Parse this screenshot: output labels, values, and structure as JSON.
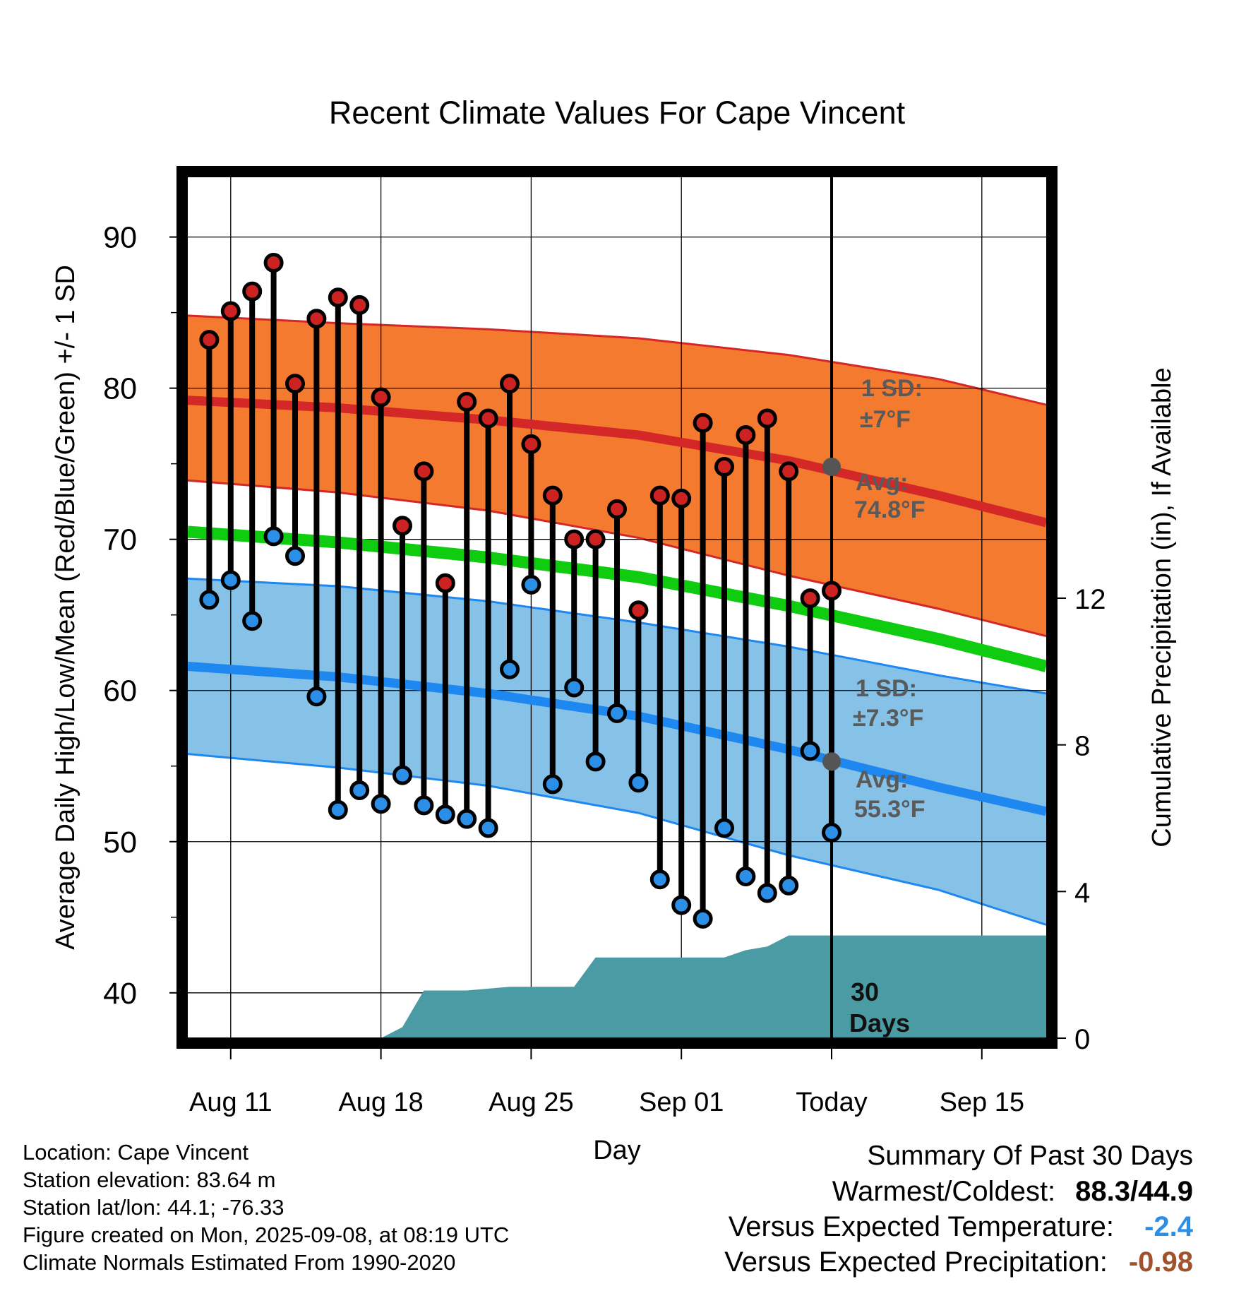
{
  "chart_data": {
    "type": "line",
    "title": "Recent Climate Values For Cape Vincent",
    "xlabel": "Day",
    "ylabel": "Average Daily High/Low/Mean (Red/Blue/Green) +/- 1 SD",
    "y2label": "Cumulative Precipitation (in), If Available",
    "ylim": [
      37,
      94
    ],
    "y_ticks": [
      "90",
      "80",
      "70",
      "60",
      "50",
      "40"
    ],
    "y2lim": [
      0,
      23.5
    ],
    "y2_ticks": [
      "12",
      "8",
      "4",
      "0"
    ],
    "x_ticks": [
      "Aug 11",
      "Aug 18",
      "Aug 25",
      "Sep 01",
      "Today",
      "Sep 15"
    ],
    "x_range_start": "Aug 09",
    "x_range_end": "Sep 18",
    "today": "Sep 08",
    "dates": [
      "Aug 10",
      "Aug 11",
      "Aug 12",
      "Aug 13",
      "Aug 14",
      "Aug 15",
      "Aug 16",
      "Aug 17",
      "Aug 18",
      "Aug 19",
      "Aug 20",
      "Aug 21",
      "Aug 22",
      "Aug 23",
      "Aug 24",
      "Aug 25",
      "Aug 26",
      "Aug 27",
      "Aug 28",
      "Aug 29",
      "Aug 30",
      "Aug 31",
      "Sep 01",
      "Sep 02",
      "Sep 03",
      "Sep 04",
      "Sep 05",
      "Sep 06",
      "Sep 07",
      "Sep 08"
    ],
    "series": [
      {
        "values": [
          83.2,
          85.1,
          86.4,
          88.3,
          80.3,
          84.6,
          86.0,
          85.5,
          79.4,
          70.9,
          74.5,
          67.1,
          79.1,
          78.0,
          80.3,
          76.3,
          72.9,
          70.0,
          70.0,
          72.0,
          65.3,
          72.9,
          72.7,
          77.7,
          74.8,
          76.9,
          78.0,
          74.5,
          66.1,
          66.6
        ]
      },
      {
        "values": [
          66.0,
          67.3,
          64.6,
          70.2,
          68.9,
          59.6,
          52.1,
          53.4,
          52.5,
          54.4,
          52.4,
          51.8,
          51.5,
          50.9,
          61.4,
          67.0,
          53.8,
          60.2,
          55.3,
          58.5,
          53.9,
          47.5,
          45.8,
          44.9,
          50.9,
          47.7,
          46.6,
          47.1,
          56.0,
          50.6
        ]
      }
    ],
    "normals_dates": [
      "Aug 09",
      "Aug 16",
      "Aug 23",
      "Aug 30",
      "Sep 06",
      "Sep 13",
      "Sep 18"
    ],
    "normal_high": [
      79.2,
      78.7,
      77.9,
      76.9,
      75.2,
      72.9,
      71.1
    ],
    "normal_high_upper": [
      84.8,
      84.3,
      83.9,
      83.3,
      82.2,
      80.6,
      78.9
    ],
    "normal_high_lower": [
      73.9,
      73.1,
      71.9,
      70.1,
      67.6,
      65.4,
      63.6
    ],
    "normal_mean": [
      70.5,
      69.8,
      68.8,
      67.5,
      65.6,
      63.4,
      61.6
    ],
    "normal_low": [
      61.6,
      60.9,
      59.8,
      58.3,
      56.1,
      53.6,
      52.0
    ],
    "normal_low_upper": [
      67.4,
      66.9,
      65.9,
      64.5,
      62.9,
      61.0,
      59.8
    ],
    "normal_low_lower": [
      55.8,
      54.9,
      53.7,
      51.9,
      49.1,
      46.8,
      44.5
    ],
    "precip_dates": [
      "Aug 17",
      "Aug 18",
      "Aug 19",
      "Aug 20",
      "Aug 22",
      "Aug 24",
      "Aug 27",
      "Aug 28",
      "Sep 02",
      "Sep 03",
      "Sep 04",
      "Sep 05",
      "Sep 06",
      "Sep 08",
      "Sep 18"
    ],
    "precip_cumulative": [
      0,
      0,
      0.3,
      1.3,
      1.3,
      1.4,
      1.4,
      2.2,
      2.2,
      2.2,
      2.4,
      2.5,
      2.8,
      2.8,
      2.8
    ],
    "annotations": {
      "high_sd_label": "1 SD:",
      "high_sd_value": "±7°F",
      "high_avg_label": "Avg:",
      "high_avg_value": "74.8°F",
      "high_avg": 74.8,
      "low_sd_label": "1 SD:",
      "low_sd_value": "±7.3°F",
      "low_avg_label": "Avg:",
      "low_avg_value": "55.3°F",
      "low_avg": 55.3,
      "precip_label_1": "30",
      "precip_label_2": "Days"
    },
    "colors": {
      "high_band": "#f47a30",
      "high_line": "#d42828",
      "low_band": "#86c1e8",
      "low_line": "#1e88f0",
      "mean_line": "#10cc10",
      "precip": "#4a9ba3",
      "high_dot": "#cc2222",
      "low_dot": "#2b8fe8",
      "avg_marker": "#555555"
    },
    "grid": true
  },
  "info": {
    "location": "Location: Cape Vincent",
    "elevation": "Station elevation: 83.64 m",
    "latlon": "Station lat/lon: 44.1; -76.33",
    "created": "Figure created on Mon, 2025-09-08, at 08:19 UTC",
    "normals": "Climate Normals Estimated From 1990-2020"
  },
  "summary": {
    "title": "Summary Of Past 30 Days",
    "warmest_coldest_label": "Warmest/Coldest:",
    "warmest_coldest_value": "88.3/44.9",
    "temp_label": "Versus Expected Temperature:",
    "temp_value": "-2.4",
    "temp_color": "#2b8fe8",
    "precip_label": "Versus Expected Precipitation:",
    "precip_value": "-0.98",
    "precip_color": "#a0522d"
  }
}
